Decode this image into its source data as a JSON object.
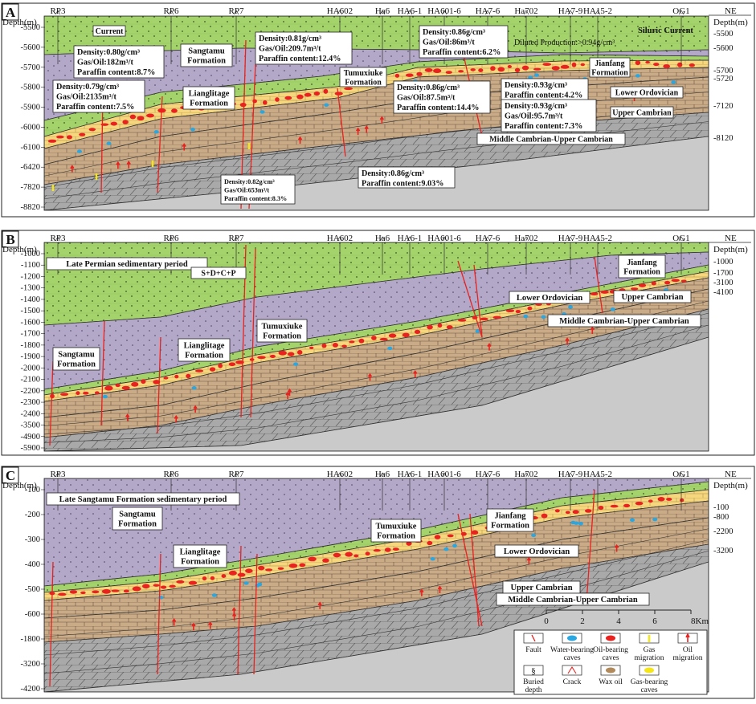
{
  "colors": {
    "green": "#a4d26b",
    "purple": "#b3a8c8",
    "tan": "#c9ab87",
    "yellow": "#f6d77d",
    "grey_limestone": "#a9a9a9",
    "basement": "#cacaca",
    "oil_red": "#e8221f",
    "water_blue": "#2aa6e0",
    "gas_yellow": "#f5e61a",
    "wax_brown": "#b08a5a"
  },
  "panels": [
    {
      "letter": "A",
      "ne_label": "NE",
      "depth_title_left": "Depth(m)",
      "depth_title_right": "Depth(m)",
      "wells": [
        "RP3",
        "RP6",
        "RP7",
        "HA602",
        "Ha6",
        "HA6-1",
        "HA601-6",
        "HA7-6",
        "Ha702",
        "HA7-9",
        "HA15-2",
        "OG1"
      ],
      "left_depths": [
        "-5500",
        "-5600",
        "-5700",
        "-5800",
        "-5900",
        "-6000",
        "-6100",
        "-6420",
        "-7820",
        "-8820"
      ],
      "right_depths": [
        "-5500",
        "-5600",
        "-5700",
        "-5720",
        "-7120",
        "-8120"
      ],
      "labels": {
        "current_left": "Current",
        "silurian_current": "Siluric  Current",
        "sangtamu": "Sangtamu\nFormation",
        "lianglitage": "Lianglitage\nFormation",
        "tumuxiuke": "Tumuxiuke\nFormation",
        "jianfang": "Jianfang\nFormation",
        "lower_ordovician": "Lower Ordovician",
        "upper_cambrian": "Upper Cambrian",
        "middle_upper_cambrian": "Middle Cambrian-Upper Cambrian",
        "diluted": "Diluted Production:>0.94g/cm³"
      },
      "callouts": [
        {
          "lines": [
            "Density:0.80g/cm³",
            "Gas/Oil:182m³/t",
            "Paraffin content:8.7%"
          ]
        },
        {
          "lines": [
            "Density:0.81g/cm³",
            "Gas/Oil:209.7m³/t",
            "Paraffin content:12.4%"
          ]
        },
        {
          "lines": [
            "Density:0.86g/cm³",
            "Gas/Oil:86m³/t",
            "Paraffin content:6.2%"
          ]
        },
        {
          "lines": [
            "Density:0.79g/cm³",
            "Gas/Oil:2135m³/t",
            "Paraffin content:7.5%"
          ]
        },
        {
          "lines": [
            "Density:0.86g/cm³",
            "Gas/Oil:87.5m³/t",
            "Paraffin content:14.4%"
          ]
        },
        {
          "lines": [
            "Density:0.93g/cm³",
            "Paraffin content:4.2%"
          ]
        },
        {
          "lines": [
            "Density:0.93g/cm³",
            "Gas/Oil:95.7m³/t",
            "Paraffin content:7.3%"
          ]
        },
        {
          "lines": [
            "Density:0.82g/cm³",
            "Gas/Oil:653m³/t",
            "Paraffin content:8.3%"
          ]
        },
        {
          "lines": [
            "Density:0.86g/cm³",
            "Paraffin content:9.03%"
          ]
        }
      ]
    },
    {
      "letter": "B",
      "ne_label": "NE",
      "depth_title_left": "Depth(m)",
      "depth_title_right": "Depth(m)",
      "wells": [
        "RP3",
        "RP6",
        "RP7",
        "HA602",
        "Ha6",
        "HA6-1",
        "HA601-6",
        "HA7-6",
        "Ha702",
        "HA7-9",
        "HA15-2",
        "OG1"
      ],
      "left_depths": [
        "-1000",
        "-1100",
        "-1200",
        "-1300",
        "-1400",
        "-1500",
        "-1600",
        "-1700",
        "-1800",
        "-1900",
        "-2000",
        "-2100",
        "-2200",
        "-2300",
        "-2400",
        "-3500",
        "-4900",
        "-5900"
      ],
      "right_depths": [
        "-1000",
        "-1700",
        "-3100",
        "-4100"
      ],
      "labels": {
        "period": "Late Permian sedimentary period",
        "sdcp": "S+D+C+P",
        "sangtamu": "Sangtamu\nFormation",
        "lianglitage": "Lianglitage\nFormation",
        "tumuxiuke": "Tumuxiuke\nFormation",
        "jianfang": "Jianfang\nFormation",
        "lower_ordovician": "Lower Ordovician",
        "upper_cambrian": "Upper Cambrian",
        "middle_upper_cambrian": "Middle Cambrian-Upper Cambrian"
      }
    },
    {
      "letter": "C",
      "ne_label": "NE",
      "depth_title_left": "Depth(m)",
      "depth_title_right": "Depth(m)",
      "wells": [
        "RP3",
        "RP6",
        "RP7",
        "HA602",
        "Ha6",
        "HA6-1",
        "HA601-6",
        "HA7-6",
        "Ha702",
        "HA7-9",
        "HA15-2",
        "OG1"
      ],
      "left_depths": [
        "-100",
        "-200",
        "-300",
        "-400",
        "-500",
        "-600",
        "-1800",
        "-3200",
        "-4200"
      ],
      "right_depths": [
        "-100",
        "-800",
        "-2200",
        "-3200"
      ],
      "labels": {
        "period": "Late Sangtamu Formation sedimentary period",
        "sangtamu": "Sangtamu\nFormation",
        "lianglitage": "Lianglitage\nFormation",
        "tumuxiuke": "Tumuxiuke\nFormation",
        "jianfang": "Jianfang\nFormation",
        "lower_ordovician": "Lower Ordovician",
        "upper_cambrian": "Upper Cambrian",
        "middle_upper_cambrian": "Middle Cambrian-Upper Cambrian"
      },
      "scale": {
        "ticks": [
          "0",
          "2",
          "4",
          "6",
          "8Km"
        ]
      },
      "legend": [
        {
          "icon": "fault",
          "label": "Fault"
        },
        {
          "icon": "water-cave",
          "label": "Water-bearing\ncaves"
        },
        {
          "icon": "oil-cave",
          "label": "Oil-bearing\ncaves"
        },
        {
          "icon": "gas-arrow",
          "label": "Gas\nmigration"
        },
        {
          "icon": "oil-arrow",
          "label": "Oil\nmigration"
        },
        {
          "icon": "buried-depth",
          "label": "Buried\ndepth"
        },
        {
          "icon": "crack",
          "label": "Crack"
        },
        {
          "icon": "wax-oil",
          "label": "Wax oil"
        },
        {
          "icon": "gas-cave",
          "label": "Gas-bearing\ncaves"
        }
      ]
    }
  ]
}
